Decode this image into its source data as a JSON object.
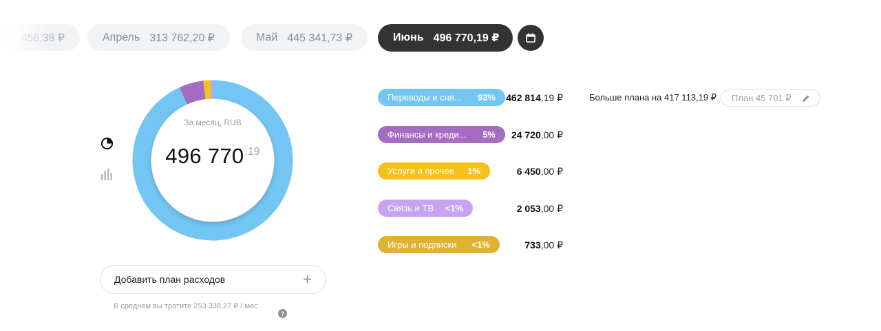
{
  "months": [
    {
      "label": "",
      "amount": "456,38 ₽"
    },
    {
      "label": "Апрель",
      "amount": "313 762,20 ₽"
    },
    {
      "label": "Май",
      "amount": "445 341,73 ₽"
    },
    {
      "label": "Июнь",
      "amount": "496 770,19 ₽"
    }
  ],
  "icons": {
    "calendar": "calendar-icon",
    "pie": "pie-chart-icon",
    "bars": "bar-chart-icon",
    "plus": "plus-icon",
    "help": "help-icon",
    "edit": "pencil-icon"
  },
  "donut": {
    "caption": "За месяц, RUB",
    "total_int": "496 770",
    "total_frac": ",19",
    "shares": [
      0.9317,
      0.0498,
      0.013,
      0.0041,
      0.0015
    ],
    "colors": [
      "#73c6f3",
      "#a66bc3",
      "#f5c21b",
      "#c6a4f1",
      "#e0b232"
    ]
  },
  "categories": [
    {
      "name": "Переводы и сня...",
      "pct": "93%",
      "amount_int": "462 814",
      "amount_frac": ",19 ₽",
      "color": "#73c6f3"
    },
    {
      "name": "Финансы и креди...",
      "pct": "5%",
      "amount_int": "24 720",
      "amount_frac": ",00 ₽",
      "color": "#a66bc3"
    },
    {
      "name": "Услуги и прочее",
      "pct": "1%",
      "amount_int": "6 450",
      "amount_frac": ",00 ₽",
      "color": "#f5c21b"
    },
    {
      "name": "Связь и ТВ",
      "pct": "<1%",
      "amount_int": "2 053",
      "amount_frac": ",00 ₽",
      "color": "#c6a4f1"
    },
    {
      "name": "Игры и подписки",
      "pct": "<1%",
      "amount_int": "733",
      "amount_frac": ",00 ₽",
      "color": "#e0b232"
    }
  ],
  "plan": {
    "over_text": "Больше плана на 417 113,19 ₽",
    "plan_label": "План 45 701 ₽"
  },
  "add_plan": {
    "label": "Добавить план расходов",
    "plus": "+"
  },
  "average": {
    "text": "В среднем вы тратите 253 338,27 ₽ / мес",
    "help": "?"
  }
}
